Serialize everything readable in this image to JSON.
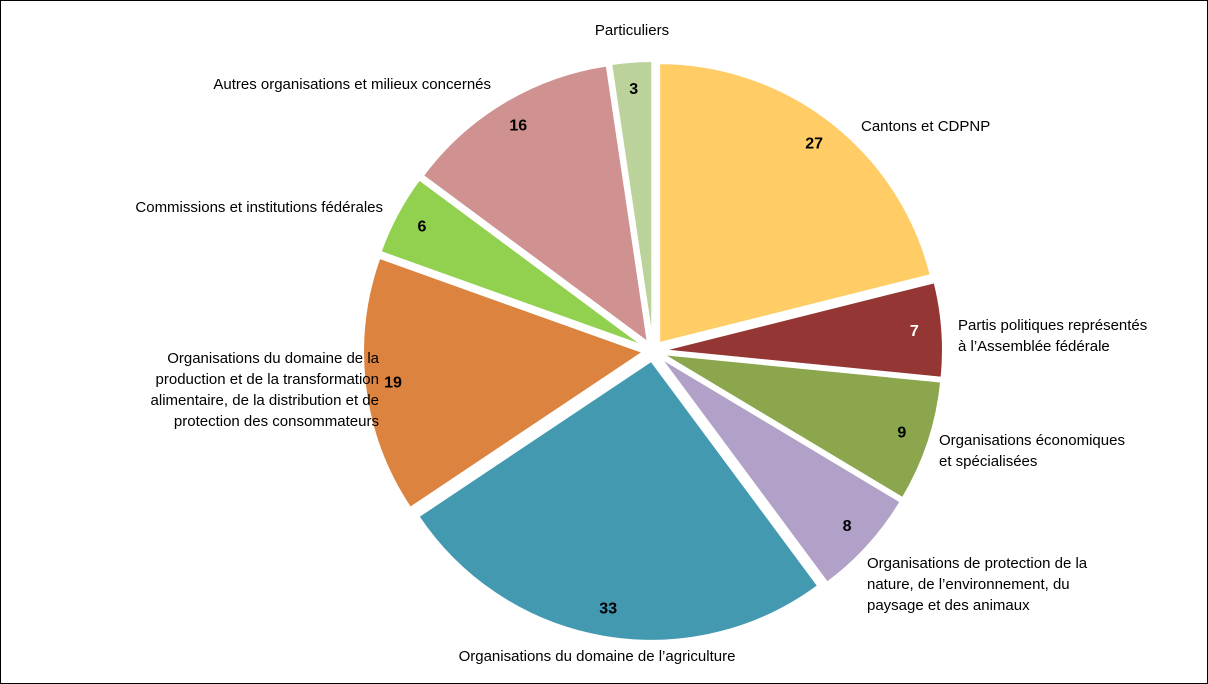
{
  "chart_data": {
    "type": "pie",
    "categories": [
      "Cantons et CDPNP",
      "Partis politiques représentés\nà l’Assemblée fédérale",
      "Organisations économiques\net spécialisées",
      "Organisations de protection de la\nnature, de l’environnement, du\npaysage et des animaux",
      "Organisations du domaine de l’agriculture",
      "Organisations du domaine de la\nproduction et de la transformation\nalimentaire, de la distribution et de\nprotection des consommateurs",
      "Commissions et institutions fédérales",
      "Autres organisations et milieux concernés",
      "Particuliers"
    ],
    "values": [
      27,
      7,
      9,
      8,
      33,
      19,
      6,
      16,
      3
    ],
    "colors": [
      "#FFCC66",
      "#943634",
      "#8BA64C",
      "#B1A0C7",
      "#4399B0",
      "#DC843F",
      "#92D050",
      "#D09290",
      "#BBD39A"
    ]
  }
}
